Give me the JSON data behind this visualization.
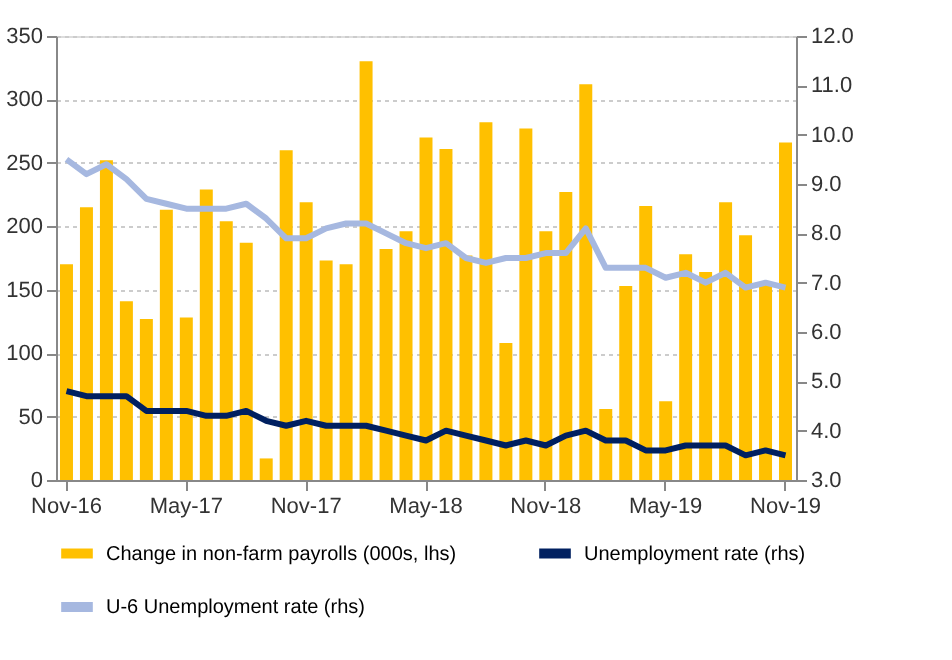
{
  "chart_data": {
    "type": "bar",
    "categories": [
      "Nov-16",
      null,
      null,
      null,
      null,
      null,
      "May-17",
      null,
      null,
      null,
      null,
      null,
      "Nov-17",
      null,
      null,
      null,
      null,
      null,
      "May-18",
      null,
      null,
      null,
      null,
      null,
      "Nov-18",
      null,
      null,
      null,
      null,
      null,
      "May-19",
      null,
      null,
      null,
      null,
      null,
      "Nov-19"
    ],
    "series": [
      {
        "name": "Change in non-farm payrolls (000s, lhs)",
        "color": "#ffc000",
        "values": [
          170,
          215,
          252,
          141,
          127,
          213,
          128,
          229,
          204,
          187,
          17,
          260,
          219,
          173,
          170,
          330,
          182,
          196,
          270,
          261,
          177,
          282,
          108,
          277,
          196,
          227,
          312,
          56,
          153,
          216,
          62,
          178,
          164,
          219,
          193,
          154,
          266
        ]
      },
      {
        "name": "Unemployment rate (rhs)",
        "type": "line",
        "axis": "y2",
        "color": "#002060",
        "values": [
          4.8,
          4.7,
          4.7,
          4.7,
          4.4,
          4.4,
          4.4,
          4.3,
          4.3,
          4.4,
          4.2,
          4.1,
          4.2,
          4.1,
          4.1,
          4.1,
          4.0,
          3.9,
          3.8,
          4.0,
          3.9,
          3.8,
          3.7,
          3.8,
          3.7,
          3.9,
          4.0,
          3.8,
          3.8,
          3.6,
          3.6,
          3.7,
          3.7,
          3.7,
          3.5,
          3.6,
          3.5
        ]
      },
      {
        "name": "U-6 Unemployment rate (rhs)",
        "type": "line",
        "axis": "y2",
        "color": "#a6b8e0",
        "values": [
          9.5,
          9.2,
          9.4,
          9.1,
          8.7,
          8.6,
          8.5,
          8.5,
          8.5,
          8.6,
          8.3,
          7.9,
          7.9,
          8.1,
          8.2,
          8.2,
          8.0,
          7.8,
          7.7,
          7.8,
          7.5,
          7.4,
          7.5,
          7.5,
          7.6,
          7.6,
          8.1,
          7.3,
          7.3,
          7.3,
          7.1,
          7.2,
          7.0,
          7.2,
          6.9,
          7.0,
          6.9
        ]
      }
    ],
    "ylim": [
      0,
      350
    ],
    "yticks": [
      0,
      50,
      100,
      150,
      200,
      250,
      300,
      350
    ],
    "y2lim": [
      3.0,
      12.0
    ],
    "y2ticks": [
      {
        "value": 3,
        "label": "3.0"
      },
      {
        "value": 4,
        "label": "4.0"
      },
      {
        "value": 5,
        "label": "5.0"
      },
      {
        "value": 6,
        "label": "6.0"
      },
      {
        "value": 7,
        "label": "7.0"
      },
      {
        "value": 8,
        "label": "8.0"
      },
      {
        "value": 9,
        "label": "9.0"
      },
      {
        "value": 10,
        "label": "10.0"
      },
      {
        "value": 11,
        "label": "11.0"
      },
      {
        "value": 12,
        "label": "12.0"
      }
    ],
    "grid": "y",
    "legend": "bottom",
    "marker": "none",
    "line_style": "solid"
  }
}
